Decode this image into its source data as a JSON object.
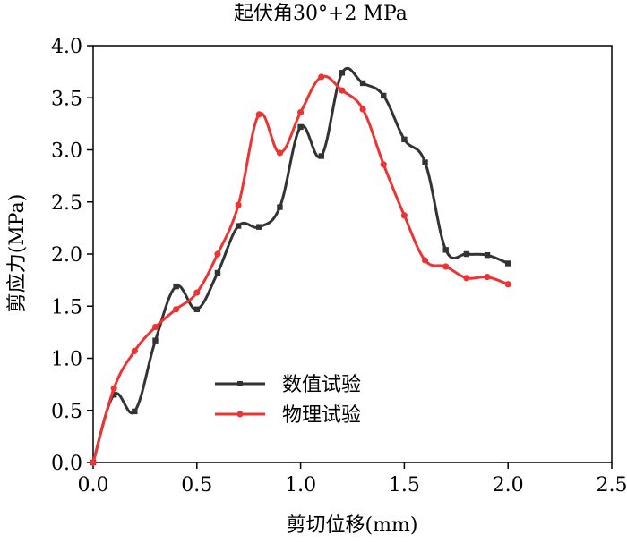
{
  "chart_data": {
    "type": "line",
    "title": "起伏角30°+2 MPa",
    "xlabel": "剪切位移(mm)",
    "ylabel": "剪应力(MPa)",
    "xlim": [
      0,
      2.5
    ],
    "ylim": [
      0,
      4.0
    ],
    "xticks": [
      0.0,
      0.5,
      1.0,
      1.5,
      2.0,
      2.5
    ],
    "yticks": [
      0.0,
      0.5,
      1.0,
      1.5,
      2.0,
      2.5,
      3.0,
      3.5,
      4.0
    ],
    "xtick_labels": [
      "0.0",
      "0.5",
      "1.0",
      "1.5",
      "2.0",
      "2.5"
    ],
    "ytick_labels": [
      "0.0",
      "0.5",
      "1.0",
      "1.5",
      "2.0",
      "2.5",
      "3.0",
      "3.5",
      "4.0"
    ],
    "grid": false,
    "legend_position": "center",
    "series": [
      {
        "name": "数值试验",
        "color": "#333333",
        "marker": "square",
        "x": [
          0.0,
          0.1,
          0.2,
          0.3,
          0.4,
          0.5,
          0.6,
          0.7,
          0.8,
          0.9,
          1.0,
          1.1,
          1.2,
          1.3,
          1.4,
          1.5,
          1.6,
          1.7,
          1.8,
          1.9,
          2.0
        ],
        "y": [
          0.0,
          0.65,
          0.49,
          1.17,
          1.69,
          1.47,
          1.82,
          2.27,
          2.26,
          2.45,
          3.22,
          2.94,
          3.74,
          3.64,
          3.52,
          3.1,
          2.88,
          2.04,
          2.0,
          1.99,
          1.91
        ]
      },
      {
        "name": "物理试验",
        "color": "#ee3333",
        "marker": "circle",
        "x": [
          0.0,
          0.1,
          0.2,
          0.3,
          0.4,
          0.5,
          0.6,
          0.7,
          0.8,
          0.9,
          1.0,
          1.1,
          1.2,
          1.3,
          1.4,
          1.5,
          1.6,
          1.7,
          1.8,
          1.9,
          2.0
        ],
        "y": [
          0.0,
          0.71,
          1.07,
          1.3,
          1.47,
          1.63,
          2.0,
          2.47,
          3.34,
          2.97,
          3.36,
          3.7,
          3.57,
          3.39,
          2.86,
          2.37,
          1.94,
          1.88,
          1.77,
          1.78,
          1.71
        ]
      }
    ]
  }
}
